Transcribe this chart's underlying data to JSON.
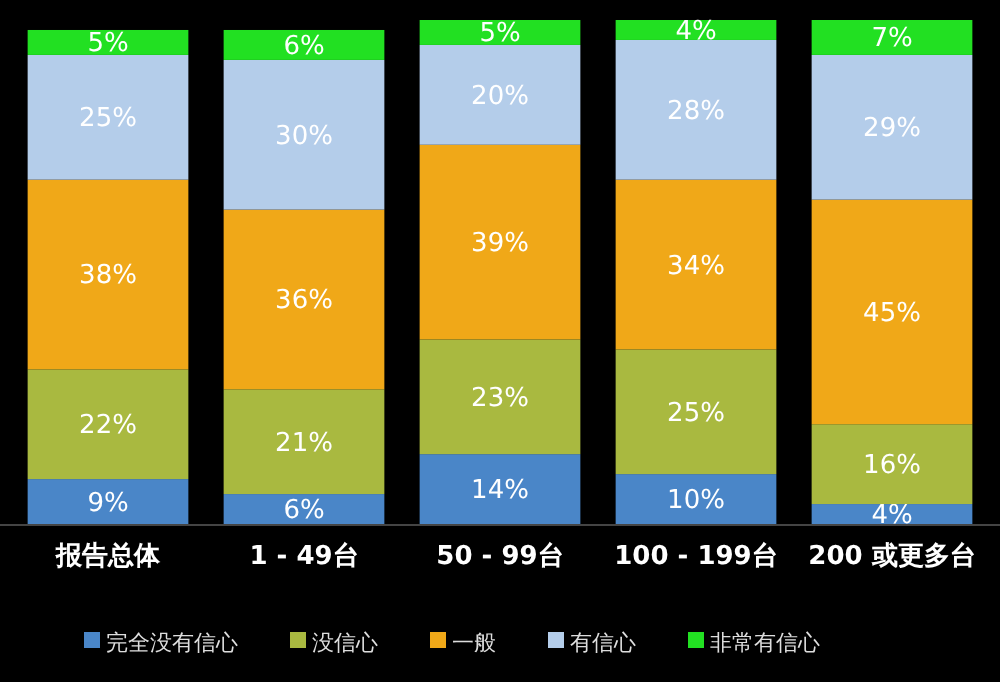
{
  "chart_data": {
    "type": "bar",
    "stacked": true,
    "legend": "bottom",
    "categories": [
      "报告总体",
      "1 - 49台",
      "50 - 99台",
      "100 - 199台",
      "200 或更多台"
    ],
    "series": [
      {
        "name": "完全没有信心",
        "color": "#4a86c8",
        "values": [
          9,
          6,
          14,
          10,
          4
        ],
        "value_labels": [
          "9%",
          "6%",
          "14%",
          "10%",
          "4%"
        ]
      },
      {
        "name": "没信心",
        "color": "#a9b940",
        "values": [
          22,
          21,
          23,
          25,
          16
        ],
        "value_labels": [
          "22%",
          "21%",
          "23%",
          "25%",
          "16%"
        ]
      },
      {
        "name": "一般",
        "color": "#f0a818",
        "values": [
          38,
          36,
          39,
          34,
          45
        ],
        "value_labels": [
          "38%",
          "36%",
          "39%",
          "34%",
          "45%"
        ]
      },
      {
        "name": "有信心",
        "color": "#b4cdea",
        "values": [
          25,
          30,
          20,
          28,
          29
        ],
        "value_labels": [
          "25%",
          "30%",
          "20%",
          "28%",
          "29%"
        ]
      },
      {
        "name": "非常有信心",
        "color": "#22e022",
        "values": [
          5,
          6,
          5,
          4,
          7
        ],
        "value_labels": [
          "5%",
          "6%",
          "5%",
          "4%",
          "7%"
        ]
      }
    ]
  }
}
